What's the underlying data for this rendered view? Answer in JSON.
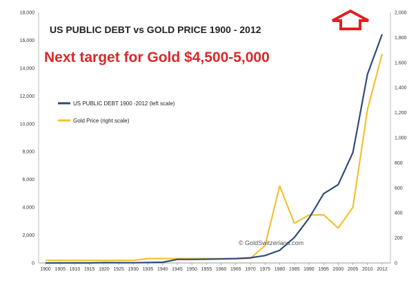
{
  "chart_data": {
    "type": "line",
    "title": "US PUBLIC DEBT vs GOLD PRICE 1900 - 2012",
    "headline": "Next target for Gold $4,500-5,000",
    "watermark": "© GoldSwitzerland.com",
    "x": [
      "1900",
      "1905",
      "1910",
      "1915",
      "1920",
      "1925",
      "1930",
      "1935",
      "1940",
      "1945",
      "1950",
      "1955",
      "1960",
      "1965",
      "1970",
      "1975",
      "1980",
      "1985",
      "1990",
      "1995",
      "2000",
      "2005",
      "2010",
      "2012"
    ],
    "y_left_ticks": [
      "0",
      "2,000",
      "4,000",
      "6,000",
      "8,000",
      "10,000",
      "12,000",
      "14,000",
      "16,000",
      "18,000"
    ],
    "y_right_ticks": [
      "0",
      "200",
      "400",
      "600",
      "800",
      "1,000",
      "1,200",
      "1,400",
      "1,600",
      "1,800",
      "2,000"
    ],
    "ylim_left": [
      0,
      18000
    ],
    "ylim_right": [
      0,
      2000
    ],
    "grid": false,
    "legend_placement": "left",
    "series": [
      {
        "name": "US PUBLIC DEBT 1900 -2012 (left scale)",
        "axis": "left",
        "color": "#2e4a7a",
        "values": [
          2,
          3,
          3,
          3,
          26,
          21,
          16,
          29,
          51,
          259,
          257,
          274,
          286,
          317,
          371,
          533,
          908,
          1823,
          3206,
          4974,
          5629,
          7933,
          13562,
          16432
        ]
      },
      {
        "name": "Gold Price (right scale)",
        "axis": "right",
        "color": "#f2c12e",
        "values": [
          21,
          21,
          21,
          21,
          21,
          21,
          21,
          35,
          35,
          35,
          35,
          35,
          35,
          35,
          36,
          140,
          615,
          317,
          383,
          384,
          279,
          444,
          1225,
          1669
        ]
      }
    ]
  },
  "arrow_color": "#e02020"
}
